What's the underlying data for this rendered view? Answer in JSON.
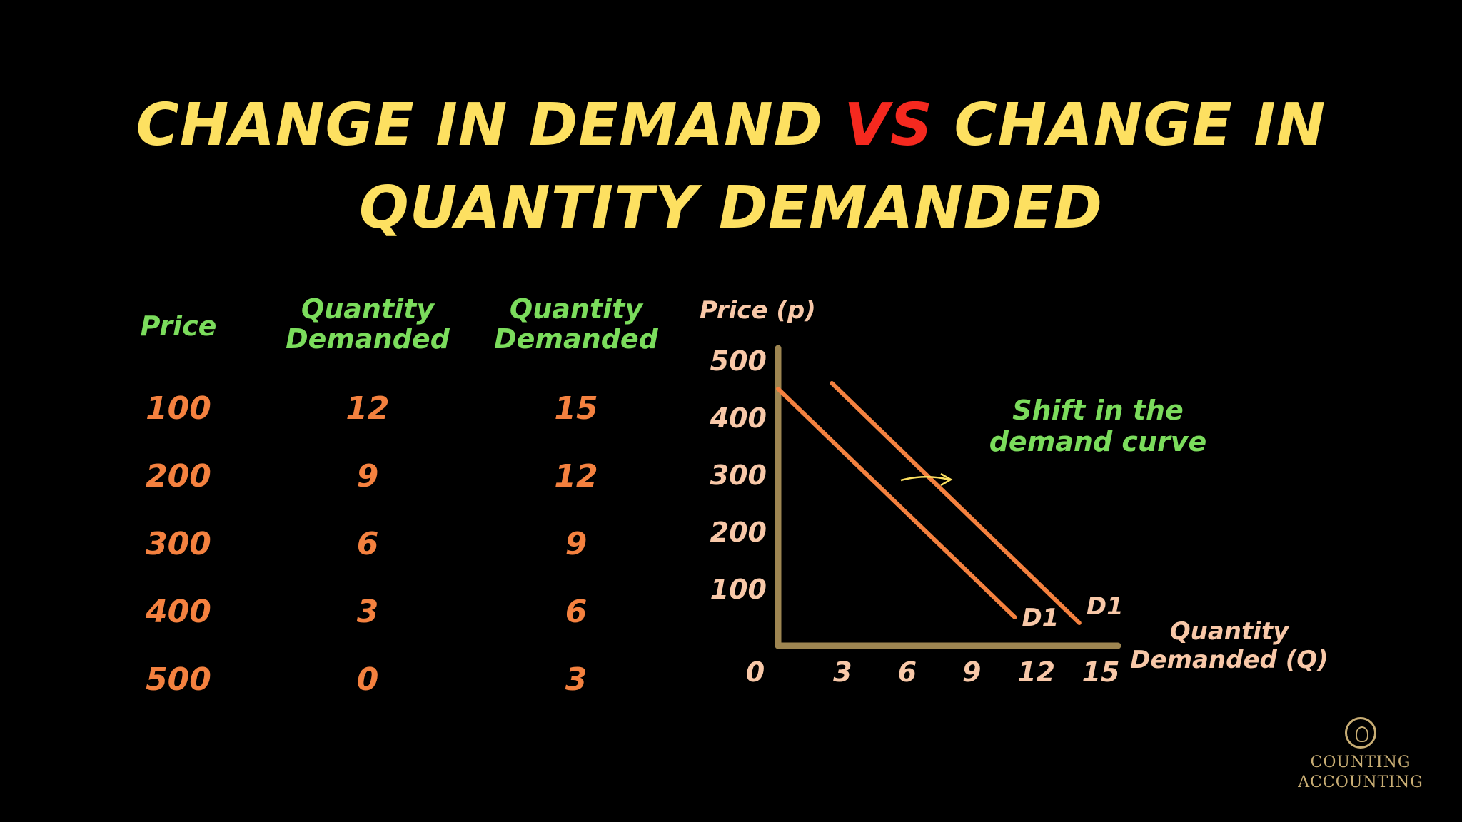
{
  "title": {
    "part1": "CHANGE IN DEMAND ",
    "vs": "VS",
    "part2": " CHANGE IN",
    "line2": "QUANTITY DEMANDED"
  },
  "table": {
    "headers": {
      "price": "Price",
      "qd1_line1": "Quantity",
      "qd1_line2": "Demanded",
      "qd2_line1": "Quantity",
      "qd2_line2": "Demanded"
    },
    "rows": [
      {
        "price": "100",
        "qd1": "12",
        "qd2": "15"
      },
      {
        "price": "200",
        "qd1": "9",
        "qd2": "12"
      },
      {
        "price": "300",
        "qd1": "6",
        "qd2": "9"
      },
      {
        "price": "400",
        "qd1": "3",
        "qd2": "6"
      },
      {
        "price": "500",
        "qd1": "0",
        "qd2": "3"
      }
    ]
  },
  "chart_data": {
    "type": "line",
    "ylabel": "Price (p)",
    "xlabel_line1": "Quantity",
    "xlabel_line2": "Demanded (Q)",
    "x_ticks": [
      "0",
      "3",
      "6",
      "9",
      "12",
      "15"
    ],
    "y_ticks": [
      "100",
      "200",
      "300",
      "400",
      "500"
    ],
    "xlim": [
      0,
      15
    ],
    "ylim": [
      0,
      500
    ],
    "grid": false,
    "series": [
      {
        "name": "D1",
        "points": [
          [
            0,
            450
          ],
          [
            11,
            50
          ]
        ],
        "color": "#f4813f"
      },
      {
        "name": "D1",
        "points": [
          [
            2.5,
            460
          ],
          [
            14,
            40
          ]
        ],
        "color": "#f4813f"
      }
    ],
    "annotation_line1": "Shift in the",
    "annotation_line2": "demand curve",
    "axis_color": "#9d8551",
    "tick_color": "#f8c8a8",
    "arrow_color": "#fde061"
  },
  "logo": {
    "line1": "COUNTING",
    "line2": "ACCOUNTING"
  }
}
